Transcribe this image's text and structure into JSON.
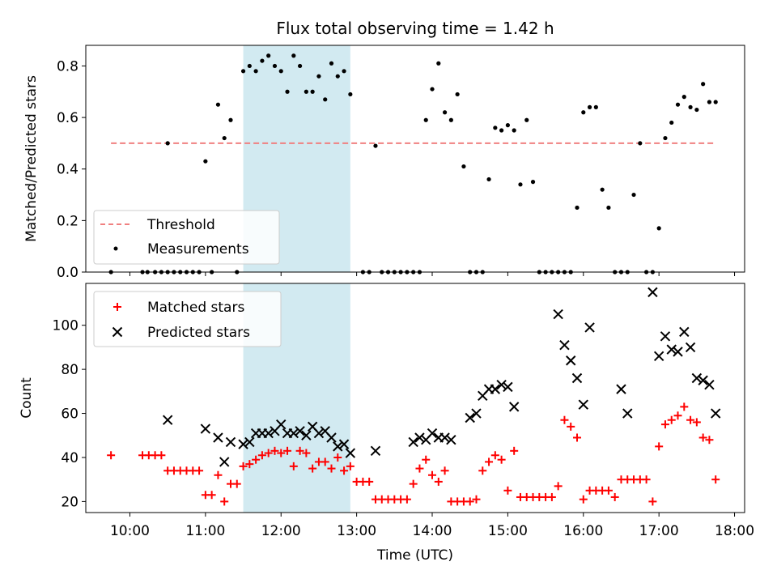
{
  "figure": {
    "title": "Flux total observing time = 1.42 h"
  },
  "highlight_band": {
    "x_start": "11:30",
    "x_end": "12:55",
    "color": "#add8e6"
  },
  "chart_data": [
    {
      "type": "scatter",
      "panel": "top",
      "title": "Flux total observing time = 1.42 h",
      "xlabel": "",
      "ylabel": "Matched/Predicted stars",
      "x_unit": "UTC time (HH:MM)",
      "xlim": [
        "09:25",
        "18:08"
      ],
      "ylim": [
        0,
        0.88
      ],
      "yticks": [
        0.0,
        0.2,
        0.4,
        0.6,
        0.8
      ],
      "ytick_labels": [
        "0.0",
        "0.2",
        "0.4",
        "0.6",
        "0.8"
      ],
      "legend": {
        "placement": "lower-left",
        "entries": [
          "Threshold",
          "Measurements"
        ]
      },
      "series": [
        {
          "name": "Threshold",
          "style": "dashed-line",
          "color": "#f08080",
          "x": [
            "09:45",
            "17:45"
          ],
          "y": [
            0.5,
            0.5
          ]
        },
        {
          "name": "Measurements",
          "style": "dot",
          "color": "#000000",
          "x": [
            "09:45",
            "10:10",
            "10:14",
            "10:20",
            "10:25",
            "10:30",
            "10:35",
            "10:40",
            "10:45",
            "10:50",
            "10:55",
            "11:00",
            "11:05",
            "11:10",
            "11:15",
            "11:20",
            "11:25",
            "11:30",
            "11:35",
            "11:40",
            "11:45",
            "11:50",
            "11:55",
            "12:00",
            "12:05",
            "12:10",
            "12:15",
            "12:20",
            "12:25",
            "12:30",
            "12:35",
            "12:40",
            "12:45",
            "12:50",
            "12:55",
            "13:05",
            "13:10",
            "13:15",
            "13:20",
            "13:25",
            "13:30",
            "13:35",
            "13:40",
            "13:45",
            "13:50",
            "13:55",
            "14:00",
            "14:05",
            "14:10",
            "14:15",
            "14:20",
            "14:25",
            "14:30",
            "14:35",
            "14:40",
            "14:45",
            "14:50",
            "14:55",
            "15:00",
            "15:05",
            "15:10",
            "15:15",
            "15:20",
            "15:25",
            "15:30",
            "15:35",
            "15:40",
            "15:45",
            "15:50",
            "15:55",
            "16:00",
            "16:05",
            "16:10",
            "16:15",
            "16:20",
            "16:25",
            "16:30",
            "16:35",
            "16:40",
            "16:45",
            "16:50",
            "16:55",
            "17:00",
            "17:05",
            "17:10",
            "17:15",
            "17:20",
            "17:25",
            "17:30",
            "17:35",
            "17:40",
            "17:45",
            "10:30"
          ],
          "y": [
            0.0,
            0.0,
            0.0,
            0.0,
            0.0,
            0.0,
            0.0,
            0.0,
            0.0,
            0.0,
            0.0,
            0.43,
            0.0,
            0.65,
            0.52,
            0.59,
            0.0,
            0.78,
            0.8,
            0.78,
            0.82,
            0.84,
            0.8,
            0.78,
            0.7,
            0.84,
            0.8,
            0.7,
            0.7,
            0.76,
            0.67,
            0.81,
            0.76,
            0.78,
            0.69,
            0.0,
            0.0,
            0.49,
            0.0,
            0.0,
            0.0,
            0.0,
            0.0,
            0.0,
            0.0,
            0.59,
            0.71,
            0.81,
            0.62,
            0.59,
            0.69,
            0.41,
            0.0,
            0.0,
            0.0,
            0.36,
            0.56,
            0.55,
            0.57,
            0.55,
            0.34,
            0.59,
            0.35,
            0.0,
            0.0,
            0.0,
            0.0,
            0.0,
            0.0,
            0.25,
            0.62,
            0.64,
            0.64,
            0.32,
            0.25,
            0.0,
            0.0,
            0.0,
            0.3,
            0.5,
            0.0,
            0.0,
            0.17,
            0.52,
            0.58,
            0.65,
            0.68,
            0.64,
            0.63,
            0.73,
            0.66,
            0.66,
            0.5
          ]
        }
      ]
    },
    {
      "type": "scatter",
      "panel": "bottom",
      "xlabel": "Time (UTC)",
      "ylabel": "Count",
      "xlim": [
        "09:25",
        "18:08"
      ],
      "ylim": [
        15,
        119
      ],
      "xticks": [
        "10:00",
        "11:00",
        "12:00",
        "13:00",
        "14:00",
        "15:00",
        "16:00",
        "17:00",
        "18:00"
      ],
      "yticks": [
        20,
        40,
        60,
        80,
        100
      ],
      "ytick_labels": [
        "20",
        "40",
        "60",
        "80",
        "100"
      ],
      "legend": {
        "placement": "top-left",
        "entries": [
          "Matched stars",
          "Predicted stars"
        ]
      },
      "series": [
        {
          "name": "Matched stars",
          "marker": "plus",
          "color": "#ff0000",
          "x": [
            "09:45",
            "10:10",
            "10:15",
            "10:20",
            "10:25",
            "10:30",
            "10:35",
            "10:40",
            "10:45",
            "10:50",
            "10:55",
            "11:00",
            "11:05",
            "11:10",
            "11:15",
            "11:20",
            "11:25",
            "11:30",
            "11:35",
            "11:40",
            "11:45",
            "11:50",
            "11:55",
            "12:00",
            "12:05",
            "12:10",
            "12:15",
            "12:20",
            "12:25",
            "12:30",
            "12:35",
            "12:40",
            "12:45",
            "12:50",
            "12:55",
            "13:00",
            "13:05",
            "13:10",
            "13:15",
            "13:20",
            "13:25",
            "13:30",
            "13:35",
            "13:40",
            "13:45",
            "13:50",
            "13:55",
            "14:00",
            "14:05",
            "14:10",
            "14:15",
            "14:20",
            "14:25",
            "14:30",
            "14:35",
            "14:40",
            "14:45",
            "14:50",
            "14:55",
            "15:00",
            "15:05",
            "15:10",
            "15:15",
            "15:20",
            "15:25",
            "15:30",
            "15:35",
            "15:40",
            "15:45",
            "15:50",
            "15:55",
            "16:00",
            "16:05",
            "16:10",
            "16:15",
            "16:20",
            "16:25",
            "16:30",
            "16:35",
            "16:40",
            "16:45",
            "16:50",
            "16:55",
            "17:00",
            "17:05",
            "17:10",
            "17:15",
            "17:20",
            "17:25",
            "17:30",
            "17:35",
            "17:40",
            "17:45"
          ],
          "y": [
            41,
            41,
            41,
            41,
            41,
            34,
            34,
            34,
            34,
            34,
            34,
            23,
            23,
            32,
            20,
            28,
            28,
            36,
            37,
            39,
            41,
            42,
            43,
            42,
            43,
            36,
            43,
            42,
            35,
            38,
            38,
            35,
            40,
            34,
            36,
            29,
            29,
            29,
            21,
            21,
            21,
            21,
            21,
            21,
            28,
            35,
            39,
            32,
            29,
            34,
            20,
            20,
            20,
            20,
            21,
            34,
            38,
            41,
            39,
            25,
            43,
            22,
            22,
            22,
            22,
            22,
            22,
            27,
            57,
            54,
            49,
            21,
            25,
            25,
            25,
            25,
            22,
            30,
            30,
            30,
            30,
            30,
            20,
            45,
            55,
            57,
            59,
            63,
            57,
            56,
            49,
            48,
            30
          ]
        },
        {
          "name": "Predicted stars",
          "marker": "x",
          "color": "#000000",
          "x": [
            "10:30",
            "11:00",
            "11:10",
            "11:15",
            "11:20",
            "11:30",
            "11:35",
            "11:40",
            "11:45",
            "11:50",
            "11:55",
            "12:00",
            "12:05",
            "12:10",
            "12:15",
            "12:20",
            "12:25",
            "12:30",
            "12:35",
            "12:40",
            "12:45",
            "12:50",
            "12:55",
            "13:15",
            "13:45",
            "13:50",
            "13:55",
            "14:00",
            "14:05",
            "14:10",
            "14:15",
            "14:30",
            "14:35",
            "14:40",
            "14:45",
            "14:50",
            "14:55",
            "15:00",
            "15:05",
            "15:40",
            "15:45",
            "15:50",
            "15:55",
            "16:00",
            "16:05",
            "16:30",
            "16:35",
            "16:55",
            "17:00",
            "17:05",
            "17:10",
            "17:15",
            "17:20",
            "17:25",
            "17:30",
            "17:35",
            "17:40",
            "17:45"
          ],
          "y": [
            57,
            53,
            49,
            38,
            47,
            46,
            47,
            51,
            51,
            51,
            52,
            55,
            51,
            51,
            52,
            50,
            54,
            51,
            52,
            49,
            45,
            46,
            42,
            43,
            47,
            49,
            48,
            51,
            49,
            49,
            48,
            58,
            60,
            68,
            71,
            71,
            73,
            72,
            63,
            105,
            91,
            84,
            76,
            64,
            99,
            71,
            60,
            115,
            86,
            95,
            89,
            88,
            97,
            90,
            76,
            75,
            73,
            60
          ]
        }
      ]
    }
  ]
}
